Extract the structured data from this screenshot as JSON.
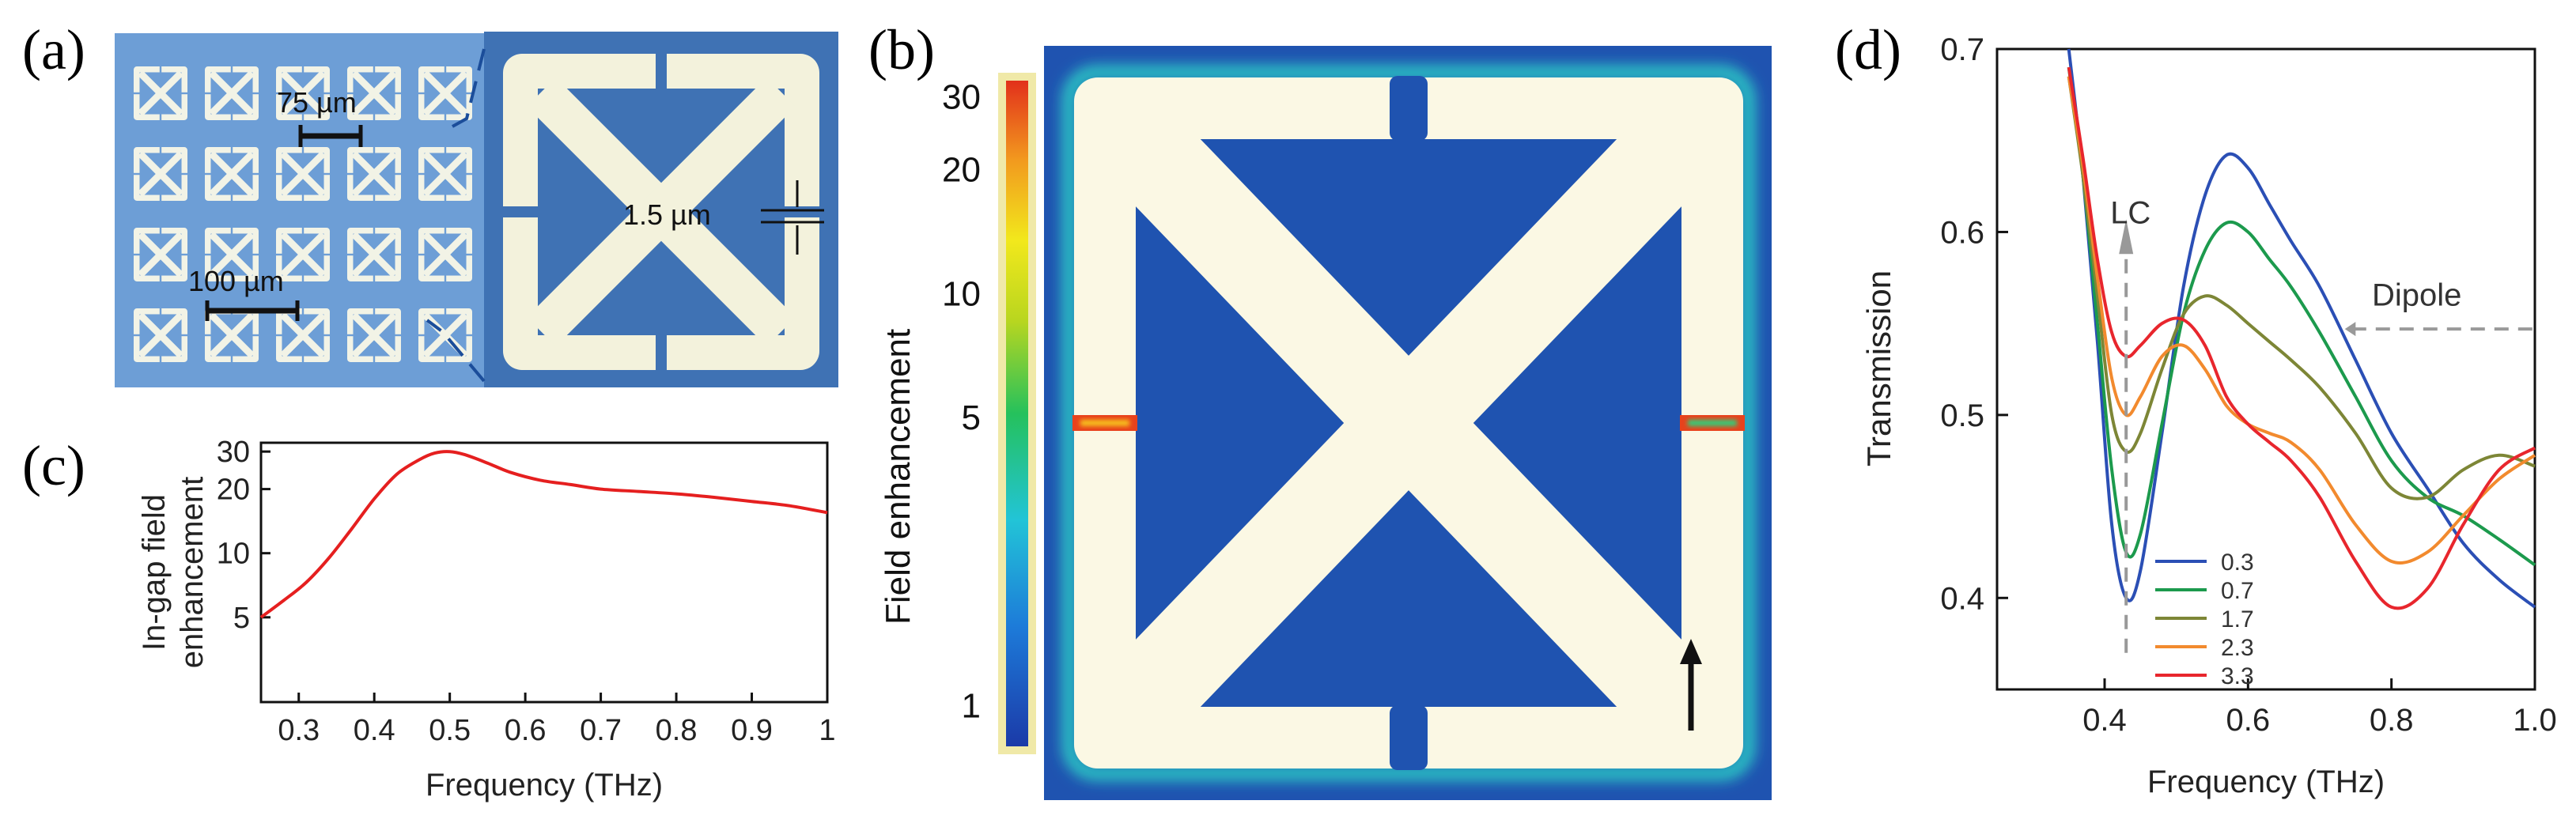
{
  "panels": {
    "a": {
      "letter": "(a)",
      "scale_period": "75 µm",
      "scale_array": "100 µm",
      "scale_gap": "1.5 µm",
      "colors": {
        "substrate": "#6d9ed6",
        "metal": "#f2f3e6",
        "zoom_substrate": "#3f72b4",
        "zoom_metal": "#f3f2dc"
      }
    },
    "b": {
      "letter": "(b)",
      "colorbar_label": "Field enhancement",
      "colorbar_ticks": [
        {
          "label": "30",
          "value": 30
        },
        {
          "label": "20",
          "value": 20
        },
        {
          "label": "10",
          "value": 10
        },
        {
          "label": "5",
          "value": 5
        },
        {
          "label": "1",
          "value": 1
        }
      ],
      "colors": {
        "background": "#1f53b0",
        "metal": "#fbf8e4",
        "hot": "#e8421c",
        "glow": "#2fd8c8"
      },
      "arrow_icon": "arrow-up-icon"
    },
    "c": {
      "letter": "(c)",
      "chart_data": {
        "type": "line",
        "title": "",
        "xlabel": "Frequency (THz)",
        "ylabel": "In-gap field enhancement",
        "ylabel_lines": [
          "In-gap field",
          "enhancement"
        ],
        "xlim": [
          0.25,
          1.0
        ],
        "ylim": [
          2,
          33
        ],
        "xticks": [
          {
            "label": "0.3",
            "value": 0.3
          },
          {
            "label": "0.4",
            "value": 0.4
          },
          {
            "label": "0.5",
            "value": 0.5
          },
          {
            "label": "0.6",
            "value": 0.6
          },
          {
            "label": "0.7",
            "value": 0.7
          },
          {
            "label": "0.8",
            "value": 0.8
          },
          {
            "label": "0.9",
            "value": 0.9
          },
          {
            "label": "1",
            "value": 1.0
          }
        ],
        "yticks": [
          {
            "label": "5",
            "value": 5
          },
          {
            "label": "10",
            "value": 10
          },
          {
            "label": "20",
            "value": 20
          },
          {
            "label": "30",
            "value": 30
          }
        ],
        "grid": false,
        "series": [
          {
            "color": "#e51f1f",
            "x": [
              0.25,
              0.28,
              0.31,
              0.34,
              0.37,
              0.4,
              0.43,
              0.46,
              0.48,
              0.5,
              0.52,
              0.55,
              0.58,
              0.62,
              0.66,
              0.7,
              0.75,
              0.8,
              0.85,
              0.9,
              0.95,
              1.0
            ],
            "y": [
              5.0,
              6.0,
              7.3,
              9.5,
              13.0,
              18.0,
              23.5,
              27.5,
              29.5,
              30.0,
              29.0,
              26.5,
              24.0,
              22.0,
              21.0,
              20.0,
              19.5,
              19.0,
              18.3,
              17.5,
              16.7,
              15.5
            ]
          }
        ]
      }
    },
    "d": {
      "letter": "(d)",
      "chart_data": {
        "type": "line",
        "title": "",
        "xlabel": "Frequency (THz)",
        "ylabel": "Transmission",
        "xlim": [
          0.25,
          1.0
        ],
        "ylim": [
          0.35,
          0.7
        ],
        "xticks": [
          {
            "label": "0.4",
            "value": 0.4
          },
          {
            "label": "0.6",
            "value": 0.6
          },
          {
            "label": "0.8",
            "value": 0.8
          },
          {
            "label": "1.0",
            "value": 1.0
          }
        ],
        "yticks": [
          {
            "label": "0.4",
            "value": 0.4
          },
          {
            "label": "0.5",
            "value": 0.5
          },
          {
            "label": "0.6",
            "value": 0.6
          },
          {
            "label": "0.7",
            "value": 0.7
          }
        ],
        "grid": false,
        "legend_position": "bottom-left",
        "annotations": [
          {
            "text": "LC",
            "x": 0.43,
            "y": 0.61
          },
          {
            "text": "Dipole",
            "x": 0.85,
            "y": 0.565
          }
        ],
        "series": [
          {
            "name": "0.3",
            "color": "#2b4fb5",
            "x": [
              0.35,
              0.37,
              0.39,
              0.41,
              0.43,
              0.45,
              0.48,
              0.51,
              0.54,
              0.57,
              0.6,
              0.63,
              0.66,
              0.7,
              0.75,
              0.8,
              0.85,
              0.9,
              0.95,
              1.0
            ],
            "y": [
              0.7,
              0.63,
              0.54,
              0.44,
              0.4,
              0.415,
              0.49,
              0.57,
              0.62,
              0.642,
              0.635,
              0.615,
              0.595,
              0.57,
              0.53,
              0.49,
              0.46,
              0.43,
              0.41,
              0.395
            ]
          },
          {
            "name": "0.7",
            "color": "#1c9a4d",
            "x": [
              0.35,
              0.37,
              0.39,
              0.41,
              0.43,
              0.45,
              0.48,
              0.51,
              0.54,
              0.57,
              0.6,
              0.63,
              0.66,
              0.7,
              0.75,
              0.8,
              0.85,
              0.9,
              0.95,
              1.0
            ],
            "y": [
              0.69,
              0.63,
              0.55,
              0.47,
              0.425,
              0.435,
              0.495,
              0.555,
              0.59,
              0.605,
              0.6,
              0.585,
              0.57,
              0.545,
              0.51,
              0.475,
              0.455,
              0.445,
              0.432,
              0.418
            ]
          },
          {
            "name": "1.7",
            "color": "#7d8636",
            "x": [
              0.35,
              0.37,
              0.39,
              0.41,
              0.43,
              0.45,
              0.48,
              0.51,
              0.54,
              0.57,
              0.6,
              0.63,
              0.66,
              0.7,
              0.75,
              0.8,
              0.85,
              0.9,
              0.95,
              1.0
            ],
            "y": [
              0.685,
              0.63,
              0.565,
              0.5,
              0.48,
              0.49,
              0.525,
              0.555,
              0.565,
              0.56,
              0.55,
              0.54,
              0.53,
              0.515,
              0.49,
              0.46,
              0.455,
              0.47,
              0.478,
              0.472
            ]
          },
          {
            "name": "2.3",
            "color": "#f28a2e",
            "x": [
              0.35,
              0.37,
              0.39,
              0.41,
              0.43,
              0.45,
              0.48,
              0.51,
              0.54,
              0.57,
              0.6,
              0.63,
              0.66,
              0.7,
              0.75,
              0.8,
              0.85,
              0.9,
              0.95,
              1.0
            ],
            "y": [
              0.685,
              0.635,
              0.575,
              0.52,
              0.5,
              0.51,
              0.532,
              0.538,
              0.525,
              0.505,
              0.495,
              0.49,
              0.485,
              0.47,
              0.44,
              0.42,
              0.425,
              0.445,
              0.465,
              0.478
            ]
          },
          {
            "name": "3.3",
            "color": "#e8262d",
            "x": [
              0.35,
              0.37,
              0.39,
              0.41,
              0.43,
              0.45,
              0.48,
              0.51,
              0.54,
              0.57,
              0.6,
              0.63,
              0.66,
              0.7,
              0.75,
              0.8,
              0.85,
              0.9,
              0.95,
              1.0
            ],
            "y": [
              0.69,
              0.64,
              0.585,
              0.545,
              0.532,
              0.538,
              0.55,
              0.552,
              0.538,
              0.51,
              0.495,
              0.485,
              0.475,
              0.455,
              0.42,
              0.395,
              0.405,
              0.44,
              0.47,
              0.482
            ]
          }
        ]
      }
    }
  }
}
